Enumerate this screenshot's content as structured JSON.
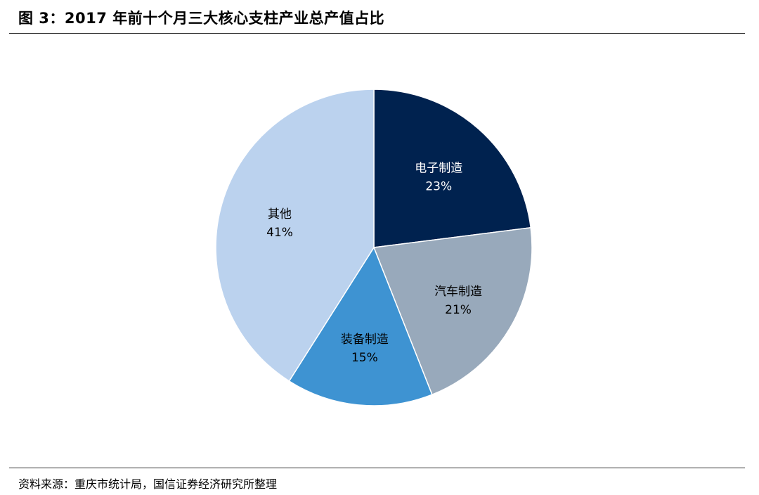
{
  "figure": {
    "title": "图 3：2017 年前十个月三大核心支柱产业总产值占比",
    "source": "资料来源：重庆市统计局，国信证券经济研究所整理"
  },
  "chart_data": {
    "type": "pie",
    "title": "",
    "start_angle_deg": 0,
    "direction": "clockwise",
    "slices": [
      {
        "label": "电子制造",
        "percent_label": "23%",
        "value": 23,
        "color": "#00224F",
        "text_color": "#FFFFFF"
      },
      {
        "label": "汽车制造",
        "percent_label": "21%",
        "value": 21,
        "color": "#98A9BB",
        "text_color": "#000000"
      },
      {
        "label": "装备制造",
        "percent_label": "15%",
        "value": 15,
        "color": "#3E93D2",
        "text_color": "#000000"
      },
      {
        "label": "其他",
        "percent_label": "41%",
        "value": 41,
        "color": "#BBD2EE",
        "text_color": "#000000"
      }
    ],
    "legend": "none",
    "grid": false
  }
}
